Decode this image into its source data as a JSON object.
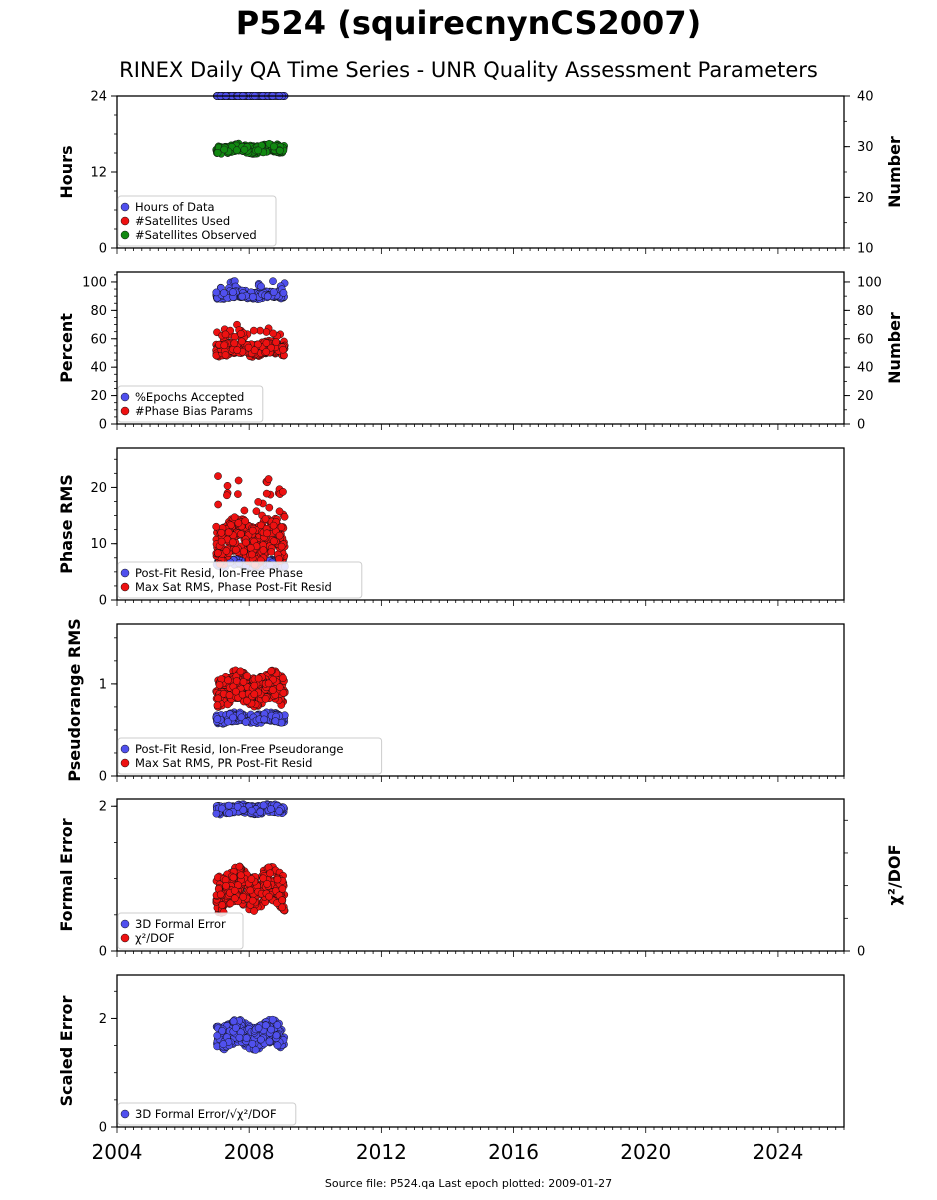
{
  "header": {
    "title": "P524 (squirecnynCS2007)",
    "subtitle": "RINEX Daily QA Time Series - UNR Quality Assessment Parameters"
  },
  "footer": {
    "text": "Source file: P524.qa Last epoch plotted: 2009-01-27"
  },
  "x_axis": {
    "min": 2004,
    "max": 2026,
    "ticks": [
      2004,
      2008,
      2012,
      2016,
      2020,
      2024
    ]
  },
  "data_range": {
    "start": 2007.0,
    "end": 2009.08
  },
  "chart_data": [
    {
      "id": "hours",
      "type": "scatter",
      "ylabel": "Hours",
      "ylim": [
        0,
        24
      ],
      "yticks": [
        0,
        12,
        24
      ],
      "ylabel_right": "Number",
      "ylim_right": [
        10,
        40
      ],
      "yticks_right": [
        10,
        20,
        30,
        40
      ],
      "legend": "lower-left",
      "series": [
        {
          "name": "Hours of Data",
          "axis": "left",
          "color": "#5050ee",
          "center": 24,
          "spread": 0,
          "points": 220
        },
        {
          "name": "#Satellites Used",
          "axis": "right",
          "color": "#ee1111",
          "center": 30,
          "spread": 0.4,
          "points": 0
        },
        {
          "name": "#Satellites Observed",
          "axis": "right",
          "color": "#118811",
          "center": 29.6,
          "spread": 0.8,
          "points": 220
        }
      ]
    },
    {
      "id": "percent",
      "type": "scatter",
      "ylabel": "Percent",
      "ylim": [
        0,
        107
      ],
      "yticks": [
        0,
        20,
        40,
        60,
        80,
        100
      ],
      "ylabel_right": "Number",
      "ylim_right": [
        0,
        107
      ],
      "yticks_right": [
        0,
        20,
        40,
        60,
        80,
        100
      ],
      "legend": "lower-left",
      "series": [
        {
          "name": "%Epochs Accepted",
          "axis": "left",
          "color": "#5050ee",
          "center": 91,
          "spread": 2.5,
          "points": 220
        },
        {
          "name": "#Phase Bias Params",
          "axis": "right",
          "color": "#ee1111",
          "center": 53,
          "spread": 4.5,
          "points": 260
        }
      ]
    },
    {
      "id": "phase",
      "type": "scatter",
      "ylabel": "Phase RMS",
      "ylim": [
        0,
        27
      ],
      "yticks": [
        0,
        10,
        20
      ],
      "legend": "lower-left",
      "series": [
        {
          "name": "Post-Fit Resid, Ion-Free Phase",
          "axis": "left",
          "color": "#5050ee",
          "center": 6.5,
          "spread": 0.6,
          "points": 220
        },
        {
          "name": "Max Sat RMS, Phase Post-Fit Resid",
          "axis": "left",
          "color": "#ee1111",
          "center": 10.5,
          "spread": 3.5,
          "points": 320
        }
      ]
    },
    {
      "id": "pseudorange",
      "type": "scatter",
      "ylabel": "Pseudorange RMS",
      "ylim": [
        0,
        1.65
      ],
      "yticks": [
        0,
        1
      ],
      "legend": "lower-left",
      "series": [
        {
          "name": "Post-Fit Resid, Ion-Free Pseudorange",
          "axis": "left",
          "color": "#5050ee",
          "center": 0.63,
          "spread": 0.05,
          "points": 220
        },
        {
          "name": "Max Sat RMS, PR Post-Fit Resid",
          "axis": "left",
          "color": "#ee1111",
          "center": 0.95,
          "spread": 0.16,
          "points": 320
        }
      ]
    },
    {
      "id": "formal",
      "type": "scatter",
      "ylabel": "Formal Error",
      "ylim": [
        0,
        2.1
      ],
      "yticks": [
        0,
        2
      ],
      "ylabel_right": "χ²/DOF",
      "yticks_right": [
        0
      ],
      "legend": "lower-left",
      "series": [
        {
          "name": "3D Formal Error",
          "axis": "left",
          "color": "#5050ee",
          "center": 1.96,
          "spread": 0.06,
          "points": 220
        },
        {
          "name": "χ²/DOF",
          "axis": "left",
          "color": "#ee1111",
          "center": 0.85,
          "spread": 0.25,
          "points": 300
        }
      ]
    },
    {
      "id": "scaled",
      "type": "scatter",
      "ylabel": "Scaled Error",
      "ylim": [
        0,
        2.8
      ],
      "yticks": [
        0,
        2
      ],
      "legend": "lower-left",
      "series": [
        {
          "name": "3D Formal Error/√χ²/DOF",
          "axis": "left",
          "color": "#5050ee",
          "center": 1.7,
          "spread": 0.22,
          "points": 260
        }
      ]
    }
  ]
}
